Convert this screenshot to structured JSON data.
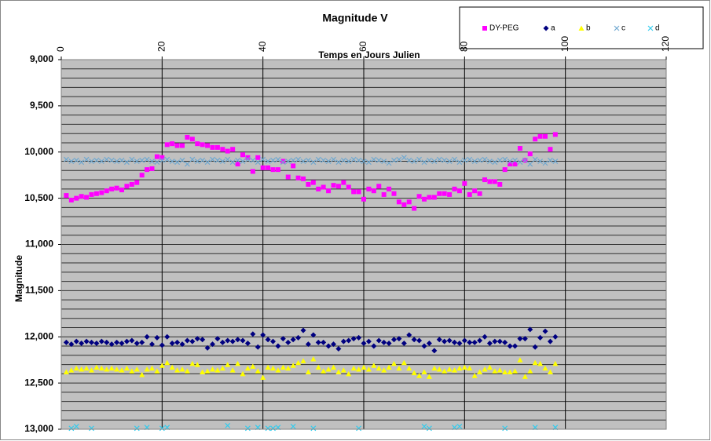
{
  "chart_data": {
    "type": "scatter",
    "title": "Magnitude V",
    "x_label": "Temps en Jours Julien",
    "y_label": "Magnitude",
    "xlim": [
      0,
      120
    ],
    "xticks": [
      0,
      20,
      40,
      60,
      80,
      100,
      120
    ],
    "ylim": [
      9000,
      13000
    ],
    "y_reversed": true,
    "yticks": [
      {
        "value": 9000,
        "label": "9,000"
      },
      {
        "value": 9500,
        "label": "9,500"
      },
      {
        "value": 10000,
        "label": "10,000"
      },
      {
        "value": 10500,
        "label": "10,500"
      },
      {
        "value": 11000,
        "label": "11,000"
      },
      {
        "value": 11500,
        "label": "11,500"
      },
      {
        "value": 12000,
        "label": "12,000"
      },
      {
        "value": 12500,
        "label": "12,500"
      },
      {
        "value": 13000,
        "label": "13,000"
      }
    ],
    "yminorticks": [
      9100,
      9200,
      9300,
      9400,
      9600,
      9700,
      9800,
      9900,
      10100,
      10200,
      10300,
      10400,
      10600,
      10700,
      10800,
      10900,
      11100,
      11200,
      11300,
      11400,
      11600,
      11700,
      11800,
      11900,
      12100,
      12200,
      12300,
      12400,
      12600,
      12700,
      12800,
      12900
    ],
    "grid": true,
    "plot_background": "#c0c0c0",
    "legend_position": "top-right",
    "x": [
      1,
      2,
      3,
      4,
      5,
      6,
      7,
      8,
      9,
      10,
      11,
      12,
      13,
      14,
      15,
      16,
      17,
      18,
      19,
      20,
      21,
      22,
      23,
      24,
      25,
      26,
      27,
      28,
      29,
      30,
      31,
      32,
      33,
      34,
      35,
      36,
      37,
      38,
      39,
      40,
      41,
      42,
      43,
      44,
      45,
      46,
      47,
      48,
      49,
      50,
      51,
      52,
      53,
      54,
      55,
      56,
      57,
      58,
      59,
      60,
      61,
      62,
      63,
      64,
      65,
      66,
      67,
      68,
      69,
      70,
      71,
      72,
      73,
      74,
      75,
      76,
      77,
      78,
      79,
      80,
      81,
      82,
      83,
      84,
      85,
      86,
      87,
      88,
      89,
      90,
      91,
      92,
      93,
      94,
      95,
      96,
      97,
      98
    ],
    "series": [
      {
        "name": "DY-PEG",
        "color": "#ff00ff",
        "marker": "square",
        "values": [
          10470,
          10520,
          10500,
          10480,
          10490,
          10460,
          10450,
          10440,
          10420,
          10400,
          10390,
          10410,
          10370,
          10350,
          10330,
          10250,
          10190,
          10180,
          10050,
          10060,
          9920,
          9910,
          9930,
          9930,
          9840,
          9860,
          9910,
          9920,
          9930,
          9950,
          9950,
          9970,
          9990,
          9970,
          10130,
          10030,
          10060,
          10210,
          10060,
          10170,
          10170,
          10190,
          10190,
          10100,
          10270,
          10150,
          10280,
          10290,
          10350,
          10330,
          10400,
          10380,
          10420,
          10360,
          10370,
          10330,
          10380,
          10430,
          10430,
          10510,
          10400,
          10420,
          10370,
          10460,
          10400,
          10450,
          10540,
          10570,
          10540,
          10610,
          10480,
          10510,
          10490,
          10490,
          10450,
          10450,
          10460,
          10400,
          10420,
          10340,
          10460,
          10420,
          10450,
          10300,
          10320,
          10320,
          10350,
          10190,
          10130,
          10130,
          9960,
          10090,
          10020,
          9860,
          9830,
          9830,
          9970,
          9810
        ]
      },
      {
        "name": "a",
        "color": "#000080",
        "marker": "diamond",
        "values": [
          12060,
          12080,
          12050,
          12070,
          12050,
          12060,
          12070,
          12050,
          12060,
          12080,
          12060,
          12070,
          12050,
          12040,
          12070,
          12060,
          12000,
          12080,
          12010,
          12090,
          12000,
          12070,
          12060,
          12080,
          12040,
          12050,
          12020,
          12030,
          12120,
          12080,
          12020,
          12060,
          12040,
          12050,
          12030,
          12040,
          12070,
          11970,
          12110,
          11980,
          12030,
          12050,
          12100,
          12020,
          12060,
          12030,
          12010,
          11930,
          12080,
          11980,
          12060,
          12060,
          12100,
          12080,
          12130,
          12050,
          12040,
          12020,
          12010,
          12070,
          12050,
          12100,
          12040,
          12060,
          12070,
          12030,
          12020,
          12070,
          11980,
          12030,
          12040,
          12100,
          12070,
          12150,
          12030,
          12050,
          12040,
          12060,
          12070,
          12040,
          12060,
          12060,
          12040,
          12000,
          12070,
          12050,
          12050,
          12060,
          12100,
          12100,
          12020,
          12020,
          11920,
          12110,
          12010,
          11940,
          12050,
          12000
        ]
      },
      {
        "name": "b",
        "color": "#ffff00",
        "marker": "triangle",
        "values": [
          12380,
          12360,
          12340,
          12350,
          12340,
          12360,
          12330,
          12340,
          12350,
          12340,
          12350,
          12360,
          12340,
          12370,
          12350,
          12410,
          12350,
          12340,
          12370,
          12310,
          12280,
          12330,
          12360,
          12350,
          12370,
          12290,
          12300,
          12380,
          12370,
          12350,
          12360,
          12340,
          12300,
          12360,
          12290,
          12400,
          12340,
          12320,
          12370,
          12440,
          12330,
          12340,
          12360,
          12330,
          12340,
          12310,
          12280,
          12260,
          12380,
          12240,
          12330,
          12370,
          12350,
          12330,
          12380,
          12360,
          12400,
          12340,
          12350,
          12330,
          12350,
          12310,
          12340,
          12360,
          12330,
          12290,
          12340,
          12280,
          12340,
          12390,
          12420,
          12380,
          12430,
          12340,
          12350,
          12370,
          12350,
          12360,
          12340,
          12330,
          12340,
          12420,
          12380,
          12350,
          12330,
          12370,
          12360,
          12380,
          12380,
          12370,
          12250,
          12430,
          12370,
          12280,
          12290,
          12340,
          12380,
          12290
        ]
      },
      {
        "name": "c",
        "color": "#6fa8d0",
        "marker": "x",
        "values": [
          10080,
          10100,
          10090,
          10110,
          10080,
          10100,
          10090,
          10100,
          10080,
          10090,
          10100,
          10090,
          10110,
          10080,
          10100,
          10090,
          10080,
          10100,
          10110,
          10090,
          10080,
          10100,
          10110,
          10090,
          10130,
          10080,
          10100,
          10090,
          10110,
          10080,
          10090,
          10100,
          10080,
          10110,
          10090,
          10100,
          10080,
          10090,
          10110,
          10080,
          10100,
          10090,
          10080,
          10110,
          10100,
          10090,
          10080,
          10100,
          10090,
          10110,
          10080,
          10090,
          10100,
          10080,
          10110,
          10090,
          10100,
          10080,
          10090,
          10100,
          10110,
          10080,
          10090,
          10100,
          10120,
          10090,
          10080,
          10060,
          10090,
          10100,
          10080,
          10110,
          10090,
          10100,
          10080,
          10090,
          10100,
          10080,
          10110,
          10090,
          10080,
          10100,
          10090,
          10080,
          10100,
          10110,
          10090,
          10080,
          10100,
          10090,
          10110,
          10090,
          10130,
          10080,
          10100,
          10120,
          10090,
          10100
        ]
      },
      {
        "name": "d",
        "color": "#33ccee",
        "marker": "x",
        "values": [
          null,
          12990,
          12970,
          null,
          null,
          12990,
          null,
          null,
          null,
          null,
          null,
          null,
          null,
          null,
          12990,
          null,
          12980,
          null,
          null,
          12990,
          12980,
          null,
          null,
          null,
          null,
          null,
          null,
          null,
          null,
          null,
          null,
          null,
          12960,
          null,
          null,
          null,
          12990,
          null,
          12980,
          null,
          12990,
          12990,
          12980,
          null,
          null,
          12970,
          null,
          null,
          null,
          12990,
          null,
          null,
          null,
          null,
          null,
          null,
          null,
          null,
          12990,
          null,
          null,
          null,
          null,
          null,
          null,
          null,
          null,
          null,
          null,
          null,
          null,
          12970,
          12990,
          null,
          null,
          null,
          null,
          12980,
          12970,
          null,
          null,
          null,
          null,
          null,
          null,
          null,
          null,
          12990,
          null,
          null,
          null,
          null,
          null,
          12980,
          null,
          null,
          null,
          12980
        ]
      }
    ]
  }
}
